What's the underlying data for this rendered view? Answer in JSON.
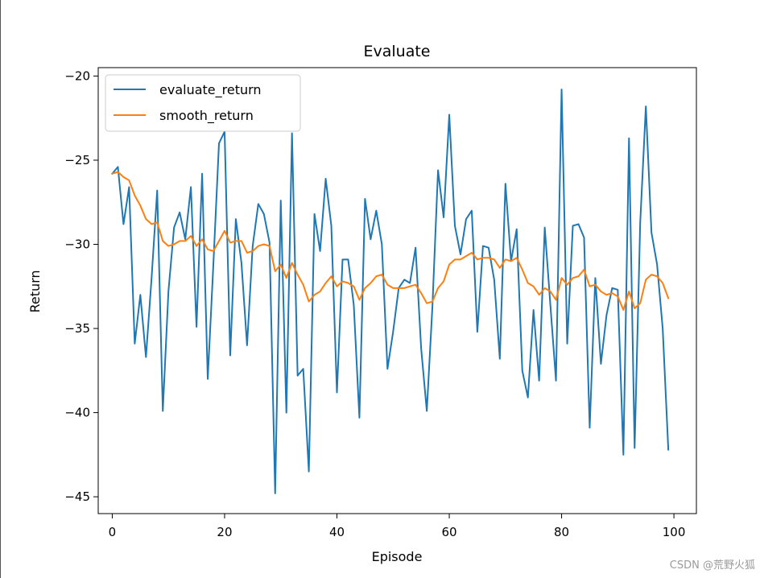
{
  "chart_data": {
    "type": "line",
    "title": "Evaluate",
    "xlabel": "Episode",
    "ylabel": "Return",
    "xlim": [
      -2.5,
      104
    ],
    "ylim": [
      -46,
      -19.5
    ],
    "xticks": [
      0,
      20,
      40,
      60,
      80,
      100
    ],
    "xtick_labels": [
      "0",
      "20",
      "40",
      "60",
      "80",
      "100"
    ],
    "yticks": [
      -20,
      -25,
      -30,
      -35,
      -40,
      -45
    ],
    "ytick_labels": [
      "−20",
      "−25",
      "−30",
      "−35",
      "−40",
      "−45"
    ],
    "grid": false,
    "legend_position": "top-left",
    "x": [
      0,
      1,
      2,
      3,
      4,
      5,
      6,
      7,
      8,
      9,
      10,
      11,
      12,
      13,
      14,
      15,
      16,
      17,
      18,
      19,
      20,
      21,
      22,
      23,
      24,
      25,
      26,
      27,
      28,
      29,
      30,
      31,
      32,
      33,
      34,
      35,
      36,
      37,
      38,
      39,
      40,
      41,
      42,
      43,
      44,
      45,
      46,
      47,
      48,
      49,
      50,
      51,
      52,
      53,
      54,
      55,
      56,
      57,
      58,
      59,
      60,
      61,
      62,
      63,
      64,
      65,
      66,
      67,
      68,
      69,
      70,
      71,
      72,
      73,
      74,
      75,
      76,
      77,
      78,
      79,
      80,
      81,
      82,
      83,
      84,
      85,
      86,
      87,
      88,
      89,
      90,
      91,
      92,
      93,
      94,
      95,
      96,
      97,
      98,
      99
    ],
    "series": [
      {
        "name": "evaluate_return",
        "color": "#1f77b4",
        "values": [
          -25.8,
          -25.4,
          -28.8,
          -26.6,
          -35.9,
          -33.0,
          -36.7,
          -32.0,
          -26.8,
          -39.9,
          -32.8,
          -29.0,
          -28.1,
          -29.7,
          -26.6,
          -34.9,
          -25.8,
          -38.0,
          -31.2,
          -24.0,
          -23.3,
          -36.6,
          -28.5,
          -31.1,
          -36.0,
          -30.1,
          -27.6,
          -28.2,
          -29.9,
          -44.8,
          -27.4,
          -40.0,
          -23.4,
          -37.8,
          -37.4,
          -43.5,
          -28.2,
          -30.4,
          -26.1,
          -28.9,
          -38.8,
          -30.9,
          -30.9,
          -33.6,
          -40.3,
          -27.3,
          -29.7,
          -28.0,
          -30.0,
          -37.4,
          -35.2,
          -32.6,
          -32.1,
          -32.3,
          -30.2,
          -36.2,
          -39.9,
          -33.7,
          -25.6,
          -28.4,
          -22.3,
          -28.9,
          -30.6,
          -28.5,
          -28.0,
          -35.2,
          -30.1,
          -30.2,
          -32.1,
          -36.8,
          -26.4,
          -31.0,
          -29.1,
          -37.5,
          -39.1,
          -33.9,
          -38.1,
          -29.0,
          -33.6,
          -38.1,
          -20.8,
          -35.9,
          -28.9,
          -28.8,
          -29.6,
          -40.9,
          -32.0,
          -37.1,
          -34.2,
          -32.6,
          -32.7,
          -42.5,
          -23.7,
          -42.1,
          -28.7,
          -21.8,
          -29.3,
          -31.2,
          -35.0,
          -42.2
        ]
      },
      {
        "name": "smooth_return",
        "color": "#ff7f0e",
        "values": [
          -25.8,
          -25.7,
          -26.0,
          -26.2,
          -27.1,
          -27.7,
          -28.5,
          -28.8,
          -28.7,
          -29.8,
          -30.1,
          -30.0,
          -29.8,
          -29.8,
          -29.5,
          -30.1,
          -29.7,
          -30.3,
          -30.4,
          -29.8,
          -29.2,
          -29.9,
          -29.8,
          -29.8,
          -30.5,
          -30.4,
          -30.1,
          -30.0,
          -30.1,
          -31.6,
          -31.2,
          -32.0,
          -31.1,
          -31.8,
          -32.4,
          -33.4,
          -33.0,
          -32.8,
          -32.3,
          -31.9,
          -32.5,
          -32.2,
          -32.3,
          -32.5,
          -33.3,
          -32.6,
          -32.3,
          -31.9,
          -31.8,
          -32.4,
          -32.6,
          -32.6,
          -32.6,
          -32.5,
          -32.4,
          -32.9,
          -33.5,
          -33.4,
          -32.6,
          -32.2,
          -31.2,
          -30.9,
          -30.9,
          -30.7,
          -30.5,
          -30.9,
          -30.8,
          -30.8,
          -30.9,
          -31.4,
          -30.9,
          -31.0,
          -30.8,
          -31.5,
          -32.3,
          -32.5,
          -33.0,
          -32.6,
          -32.8,
          -33.3,
          -32.0,
          -32.4,
          -32.0,
          -31.9,
          -31.5,
          -32.5,
          -32.4,
          -32.8,
          -33.0,
          -32.9,
          -33.1,
          -33.9,
          -32.8,
          -33.8,
          -33.5,
          -32.1,
          -31.8,
          -31.9,
          -32.3,
          -33.2
        ]
      }
    ]
  },
  "watermark": "CSDN @荒野火狐"
}
